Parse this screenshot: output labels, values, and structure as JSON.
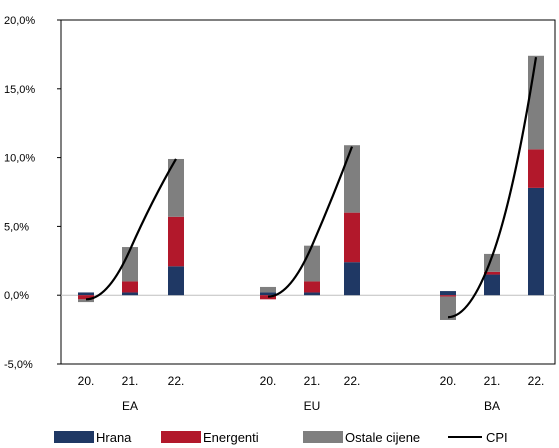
{
  "chart_data": {
    "type": "bar",
    "stacked": true,
    "y_ticks": [
      "20,0%",
      "15,0%",
      "10,0%",
      "5,0%",
      "0,0%",
      "-5,0%"
    ],
    "ylim": [
      -5,
      20
    ],
    "groups": [
      {
        "label": "EA",
        "categories": [
          "20.",
          "21.",
          "22."
        ]
      },
      {
        "label": "EU",
        "categories": [
          "20.",
          "21.",
          "22."
        ]
      },
      {
        "label": "BA",
        "categories": [
          "20.",
          "21.",
          "22."
        ]
      }
    ],
    "series": [
      {
        "name": "Hrana",
        "color": "#1f3864",
        "values": [
          0.2,
          0.2,
          2.1,
          0.2,
          0.2,
          2.4,
          0.3,
          1.5,
          7.8
        ]
      },
      {
        "name": "Energenti",
        "color": "#b2182b",
        "values": [
          -0.3,
          0.8,
          3.6,
          -0.3,
          0.8,
          3.6,
          -0.1,
          0.2,
          2.8
        ]
      },
      {
        "name": "Ostale cijene",
        "color": "#7f7f7f",
        "values": [
          -0.2,
          2.5,
          4.2,
          0.4,
          2.6,
          4.9,
          -1.7,
          1.3,
          6.8
        ]
      }
    ],
    "cpi": {
      "name": "CPI",
      "color": "#000000",
      "values": [
        -0.3,
        3.3,
        9.9,
        -0.1,
        3.6,
        10.8,
        -1.6,
        2.8,
        17.3
      ]
    },
    "legend_position": "bottom",
    "grid": false
  }
}
